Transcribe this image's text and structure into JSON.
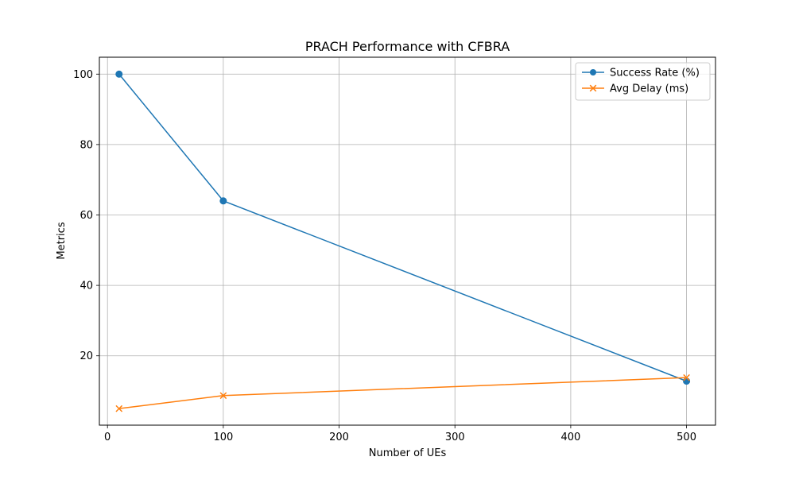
{
  "chart_data": {
    "type": "line",
    "title": "PRACH Performance with CFBRA",
    "xlabel": "Number of UEs",
    "ylabel": "Metrics",
    "x": [
      10,
      100,
      500
    ],
    "xlim": [
      -7,
      525
    ],
    "ylim": [
      0.3,
      104.8
    ],
    "xticks": [
      0,
      100,
      200,
      300,
      400,
      500
    ],
    "yticks": [
      20,
      40,
      60,
      80,
      100
    ],
    "grid": true,
    "legend_position": "top-right",
    "series": [
      {
        "name": "Success Rate (%)",
        "values": [
          100,
          64,
          12.8
        ],
        "color": "#1f77b4",
        "marker": "circle"
      },
      {
        "name": "Avg Delay (ms)",
        "values": [
          5.0,
          8.7,
          13.8
        ],
        "color": "#ff7f0e",
        "marker": "x"
      }
    ]
  }
}
